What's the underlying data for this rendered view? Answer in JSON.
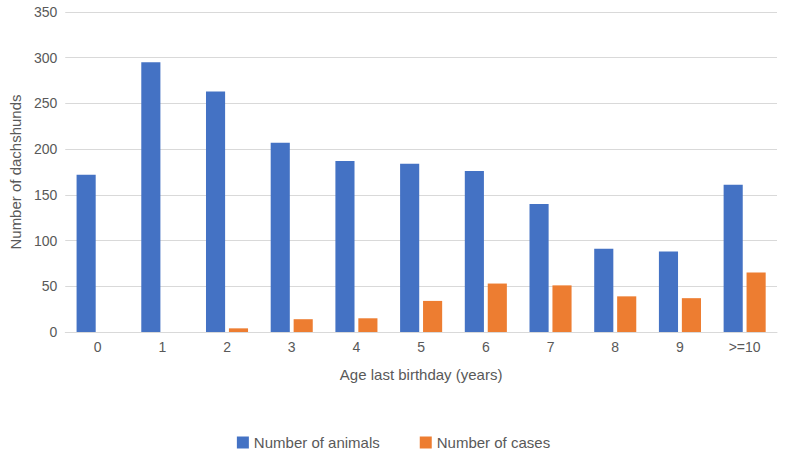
{
  "chart_data": {
    "type": "bar",
    "x_label": "Age last birthday (years)",
    "y_label": "Number of dachshunds",
    "categories": [
      "0",
      "1",
      "2",
      "3",
      "4",
      "5",
      "6",
      "7",
      "8",
      "9",
      ">=10"
    ],
    "series": [
      {
        "name": "Number of animals",
        "color": "#4472c4",
        "values": [
          172,
          295,
          263,
          207,
          187,
          184,
          176,
          140,
          91,
          88,
          161
        ]
      },
      {
        "name": "Number of cases",
        "color": "#ed7d31",
        "values": [
          0,
          0,
          4,
          14,
          15,
          34,
          53,
          51,
          39,
          37,
          65
        ]
      }
    ],
    "ylim": [
      0,
      350
    ],
    "yticks": [
      0,
      50,
      100,
      150,
      200,
      250,
      300,
      350
    ],
    "grid": true,
    "legend": "bottom"
  }
}
